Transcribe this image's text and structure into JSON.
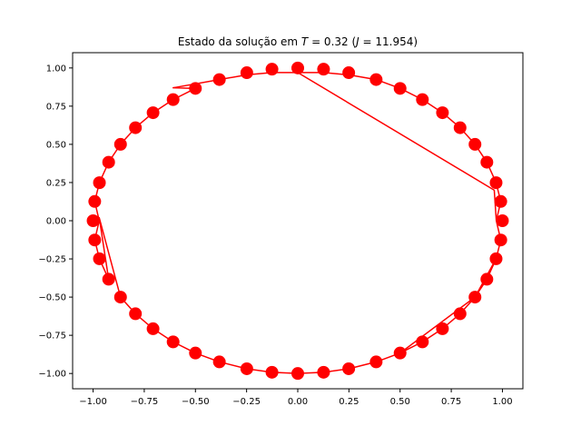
{
  "chart_data": {
    "type": "scatter",
    "title_prefix": "Estado da solução em ",
    "title_T_symbol": "T",
    "title_T_value": " = 0.32 (",
    "title_J_symbol": "J",
    "title_J_value": " = 11.954)",
    "xlabel": "",
    "ylabel": "",
    "xlim": [
      -1.1,
      1.1
    ],
    "ylim": [
      -1.1,
      1.1
    ],
    "xticks": [
      "−1.00",
      "−0.75",
      "−0.50",
      "−0.25",
      "0.00",
      "0.25",
      "0.50",
      "0.75",
      "1.00"
    ],
    "xtick_values": [
      -1.0,
      -0.75,
      -0.5,
      -0.25,
      0.0,
      0.25,
      0.5,
      0.75,
      1.0
    ],
    "yticks": [
      "−1.00",
      "−0.75",
      "−0.50",
      "−0.25",
      "0.00",
      "0.25",
      "0.50",
      "0.75",
      "1.00"
    ],
    "ytick_values": [
      -1.0,
      -0.75,
      -0.5,
      -0.25,
      0.0,
      0.25,
      0.5,
      0.75,
      1.0
    ],
    "grid": false,
    "color": "#ff0000",
    "series": [
      {
        "points": [
          [
            0.0,
            1.0
          ],
          [
            0.126,
            0.992
          ],
          [
            0.249,
            0.969
          ],
          [
            0.383,
            0.924
          ],
          [
            0.5,
            0.866
          ],
          [
            0.609,
            0.793
          ],
          [
            0.707,
            0.707
          ],
          [
            0.793,
            0.609
          ],
          [
            0.866,
            0.5
          ],
          [
            0.924,
            0.383
          ],
          [
            0.969,
            0.249
          ],
          [
            0.992,
            0.126
          ],
          [
            1.0,
            0.0
          ],
          [
            0.992,
            -0.126
          ],
          [
            0.969,
            -0.249
          ],
          [
            0.924,
            -0.383
          ],
          [
            0.866,
            -0.5
          ],
          [
            0.793,
            -0.609
          ],
          [
            0.707,
            -0.707
          ],
          [
            0.609,
            -0.793
          ],
          [
            0.5,
            -0.866
          ],
          [
            0.383,
            -0.924
          ],
          [
            0.249,
            -0.969
          ],
          [
            0.126,
            -0.992
          ],
          [
            0.0,
            -1.0
          ],
          [
            -0.126,
            -0.992
          ],
          [
            -0.249,
            -0.969
          ],
          [
            -0.383,
            -0.924
          ],
          [
            -0.5,
            -0.866
          ],
          [
            -0.609,
            -0.793
          ],
          [
            -0.707,
            -0.707
          ],
          [
            -0.793,
            -0.609
          ],
          [
            -0.866,
            -0.5
          ],
          [
            -0.924,
            -0.383
          ],
          [
            -0.969,
            -0.249
          ],
          [
            -0.992,
            -0.126
          ],
          [
            -1.0,
            0.0
          ],
          [
            -0.992,
            0.126
          ],
          [
            -0.969,
            0.249
          ],
          [
            -0.924,
            0.383
          ],
          [
            -0.866,
            0.5
          ],
          [
            -0.793,
            0.609
          ],
          [
            -0.707,
            0.707
          ],
          [
            -0.609,
            0.793
          ],
          [
            -0.5,
            0.866
          ],
          [
            -0.383,
            0.924
          ],
          [
            -0.249,
            0.969
          ],
          [
            -0.126,
            0.992
          ]
        ],
        "line_path": [
          [
            0.0,
            0.97
          ],
          [
            0.126,
            0.97
          ],
          [
            0.249,
            0.955
          ],
          [
            0.383,
            0.924
          ],
          [
            0.5,
            0.866
          ],
          [
            0.609,
            0.793
          ],
          [
            0.707,
            0.707
          ],
          [
            0.793,
            0.609
          ],
          [
            0.866,
            0.5
          ],
          [
            0.924,
            0.383
          ],
          [
            0.969,
            0.249
          ],
          [
            0.992,
            0.126
          ],
          [
            0.97,
            0.0
          ],
          [
            0.992,
            -0.126
          ],
          [
            0.969,
            -0.249
          ],
          [
            0.924,
            -0.383
          ],
          [
            0.866,
            -0.5
          ],
          [
            0.793,
            -0.609
          ],
          [
            0.707,
            -0.707
          ],
          [
            0.609,
            -0.793
          ],
          [
            0.5,
            -0.866
          ],
          [
            0.383,
            -0.924
          ],
          [
            0.5,
            -0.866
          ],
          [
            0.866,
            -0.5
          ],
          [
            0.969,
            -0.249
          ],
          [
            0.992,
            -0.126
          ],
          [
            0.97,
            0.0
          ],
          [
            0.96,
            0.2
          ],
          [
            0.0,
            0.97
          ],
          [
            -0.126,
            0.97
          ],
          [
            -0.249,
            0.955
          ],
          [
            -0.383,
            0.924
          ],
          [
            -0.609,
            0.87
          ],
          [
            -0.5,
            0.866
          ],
          [
            -0.609,
            0.793
          ],
          [
            -0.707,
            0.707
          ],
          [
            -0.793,
            0.609
          ],
          [
            -0.866,
            0.5
          ],
          [
            -0.924,
            0.383
          ],
          [
            -0.969,
            0.249
          ],
          [
            -0.992,
            0.126
          ],
          [
            -0.97,
            0.0
          ],
          [
            -0.992,
            -0.126
          ],
          [
            -0.969,
            -0.249
          ],
          [
            -0.924,
            -0.383
          ],
          [
            -0.97,
            0.02
          ],
          [
            -0.866,
            -0.5
          ],
          [
            -0.793,
            -0.609
          ],
          [
            -0.707,
            -0.707
          ],
          [
            -0.609,
            -0.793
          ],
          [
            -0.5,
            -0.866
          ],
          [
            -0.383,
            -0.924
          ],
          [
            -0.249,
            -0.969
          ],
          [
            -0.126,
            -0.992
          ],
          [
            0.0,
            -1.0
          ],
          [
            0.126,
            -0.992
          ],
          [
            0.249,
            -0.969
          ],
          [
            0.383,
            -0.924
          ]
        ]
      }
    ]
  }
}
